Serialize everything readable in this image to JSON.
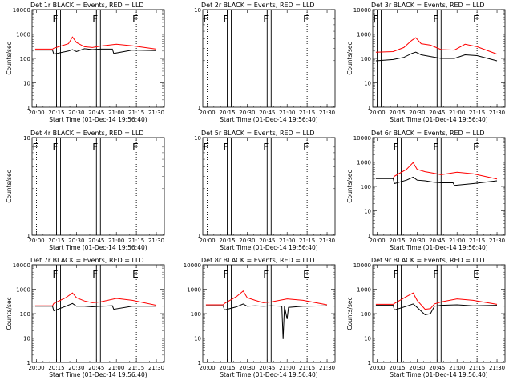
{
  "chart_data": [
    {
      "type": "line",
      "title": "Det 1r BLACK = Events, RED = LLD",
      "xlabel": "Start Time (01-Dec-14 19:56:40)",
      "ylabel": "Counts/sec",
      "yscale": "log",
      "ylim": [
        1,
        10000
      ],
      "yticks": [
        "1",
        "10",
        "100",
        "1000",
        "10000"
      ],
      "xticks": [
        "20:00",
        "20:15",
        "20:30",
        "20:45",
        "21:00",
        "21:15",
        "21:30"
      ],
      "markers": [
        {
          "label": "F",
          "x": "20:15"
        },
        {
          "label": "F",
          "x": "20:45"
        },
        {
          "label": "E",
          "x": "21:15"
        }
      ],
      "series": [
        {
          "name": "RED = LLD",
          "color": "#ff0000",
          "x": [
            "19:59",
            "20:12",
            "20:13",
            "20:24",
            "20:27",
            "20:30",
            "20:36",
            "20:42",
            "20:48",
            "21:00",
            "21:12",
            "21:30"
          ],
          "y": [
            240,
            240,
            260,
            400,
            750,
            450,
            300,
            280,
            320,
            380,
            330,
            240
          ]
        },
        {
          "name": "BLACK = Events",
          "color": "#000000",
          "x": [
            "19:59",
            "20:12",
            "20:13",
            "20:24",
            "20:27",
            "20:30",
            "20:36",
            "20:42",
            "20:48",
            "20:57",
            "20:58",
            "21:12",
            "21:30"
          ],
          "y": [
            220,
            220,
            150,
            200,
            230,
            190,
            250,
            230,
            240,
            240,
            160,
            220,
            210
          ]
        }
      ]
    },
    {
      "type": "line",
      "title": "Det 2r BLACK = Events, RED = LLD",
      "xlabel": "Start Time (01-Dec-14 19:56:40)",
      "ylabel": "",
      "yscale": "log",
      "ylim": [
        1,
        10
      ],
      "yticks": [
        "1",
        "10"
      ],
      "xticks": [
        "20:00",
        "20:15",
        "20:30",
        "20:45",
        "21:00",
        "21:15",
        "21:30"
      ],
      "markers": [
        {
          "label": "E",
          "x": "20:00"
        },
        {
          "label": "F",
          "x": "20:15"
        },
        {
          "label": "F",
          "x": "20:45"
        },
        {
          "label": "E",
          "x": "21:15"
        }
      ],
      "series": []
    },
    {
      "type": "line",
      "title": "Det 3r BLACK = Events, RED = LLD",
      "xlabel": "Start Time (01-Dec-14 19:56:40)",
      "ylabel": "Counts/sec",
      "yscale": "log",
      "ylim": [
        1,
        10000
      ],
      "yticks": [
        "1",
        "10",
        "100",
        "1000",
        "10000"
      ],
      "xticks": [
        "20:00",
        "20:15",
        "20:30",
        "20:45",
        "21:00",
        "21:15",
        "21:30"
      ],
      "markers": [
        {
          "label": "F",
          "x": "20:00"
        },
        {
          "label": "F",
          "x": "20:45"
        },
        {
          "label": "E",
          "x": "21:15"
        }
      ],
      "series": [
        {
          "name": "RED = LLD",
          "color": "#ff0000",
          "x": [
            "19:59",
            "20:12",
            "20:20",
            "20:26",
            "20:29",
            "20:33",
            "20:40",
            "20:48",
            "20:58",
            "21:06",
            "21:15",
            "21:30"
          ],
          "y": [
            180,
            190,
            280,
            550,
            700,
            400,
            350,
            230,
            220,
            380,
            300,
            150
          ]
        },
        {
          "name": "BLACK = Events",
          "color": "#000000",
          "x": [
            "19:59",
            "20:12",
            "20:20",
            "20:26",
            "20:29",
            "20:33",
            "20:40",
            "20:48",
            "20:58",
            "21:06",
            "21:15",
            "21:30"
          ],
          "y": [
            80,
            90,
            110,
            160,
            180,
            140,
            120,
            100,
            100,
            140,
            130,
            80
          ]
        }
      ]
    },
    {
      "type": "line",
      "title": "Det 4r BLACK = Events, RED = LLD",
      "xlabel": "Start Time (01-Dec-14 19:56:40)",
      "ylabel": "Counts/sec",
      "yscale": "log",
      "ylim": [
        1,
        10
      ],
      "yticks": [
        "1",
        "10"
      ],
      "xticks": [
        "20:00",
        "20:15",
        "20:30",
        "20:45",
        "21:00",
        "21:15",
        "21:30"
      ],
      "markers": [
        {
          "label": "E",
          "x": "20:00"
        },
        {
          "label": "F",
          "x": "20:15"
        },
        {
          "label": "F",
          "x": "20:45"
        },
        {
          "label": "E",
          "x": "21:15"
        }
      ],
      "series": []
    },
    {
      "type": "line",
      "title": "Det 5r BLACK = Events, RED = LLD",
      "xlabel": "Start Time (01-Dec-14 19:56:40)",
      "ylabel": "",
      "yscale": "log",
      "ylim": [
        1,
        10
      ],
      "yticks": [
        "1",
        "10"
      ],
      "xticks": [
        "20:00",
        "20:15",
        "20:30",
        "20:45",
        "21:00",
        "21:15",
        "21:30"
      ],
      "markers": [
        {
          "label": "E",
          "x": "20:00"
        },
        {
          "label": "F",
          "x": "20:15"
        },
        {
          "label": "F",
          "x": "20:45"
        },
        {
          "label": "E",
          "x": "21:15"
        }
      ],
      "series": []
    },
    {
      "type": "line",
      "title": "Det 6r BLACK = Events, RED = LLD",
      "xlabel": "Start Time (01-Dec-14 19:56:40)",
      "ylabel": "Counts/sec",
      "yscale": "log",
      "ylim": [
        1,
        10000
      ],
      "yticks": [
        "1",
        "10",
        "100",
        "1000",
        "10000"
      ],
      "xticks": [
        "20:00",
        "20:15",
        "20:30",
        "20:45",
        "21:00",
        "21:15",
        "21:30"
      ],
      "markers": [
        {
          "label": "F",
          "x": "20:15"
        },
        {
          "label": "F",
          "x": "20:45"
        },
        {
          "label": "E",
          "x": "21:15"
        }
      ],
      "series": [
        {
          "name": "RED = LLD",
          "color": "#ff0000",
          "x": [
            "19:59",
            "20:12",
            "20:13",
            "20:22",
            "20:27",
            "20:30",
            "20:36",
            "20:42",
            "20:48",
            "21:00",
            "21:12",
            "21:30"
          ],
          "y": [
            220,
            220,
            260,
            500,
            950,
            500,
            400,
            350,
            300,
            380,
            330,
            200
          ]
        },
        {
          "name": "BLACK = Events",
          "color": "#000000",
          "x": [
            "19:59",
            "20:12",
            "20:13",
            "20:22",
            "20:27",
            "20:30",
            "20:36",
            "20:42",
            "20:48",
            "20:57",
            "20:58",
            "21:12",
            "21:30"
          ],
          "y": [
            210,
            210,
            130,
            180,
            240,
            180,
            170,
            150,
            140,
            140,
            110,
            130,
            170
          ]
        }
      ]
    },
    {
      "type": "line",
      "title": "Det 7r BLACK = Events, RED = LLD",
      "xlabel": "Start Time (01-Dec-14 19:56:40)",
      "ylabel": "Counts/sec",
      "yscale": "log",
      "ylim": [
        1,
        10000
      ],
      "yticks": [
        "1",
        "10",
        "100",
        "1000",
        "10000"
      ],
      "xticks": [
        "20:00",
        "20:15",
        "20:30",
        "20:45",
        "21:00",
        "21:15",
        "21:30"
      ],
      "markers": [
        {
          "label": "F",
          "x": "20:15"
        },
        {
          "label": "F",
          "x": "20:45"
        },
        {
          "label": "E",
          "x": "21:15"
        }
      ],
      "series": [
        {
          "name": "RED = LLD",
          "color": "#ff0000",
          "x": [
            "19:59",
            "20:12",
            "20:13",
            "20:22",
            "20:27",
            "20:30",
            "20:36",
            "20:42",
            "20:48",
            "21:00",
            "21:12",
            "21:30"
          ],
          "y": [
            210,
            210,
            260,
            450,
            700,
            450,
            330,
            280,
            300,
            420,
            350,
            220
          ]
        },
        {
          "name": "BLACK = Events",
          "color": "#000000",
          "x": [
            "19:59",
            "20:12",
            "20:13",
            "20:22",
            "20:27",
            "20:30",
            "20:36",
            "20:42",
            "20:48",
            "20:57",
            "20:58",
            "21:12",
            "21:30"
          ],
          "y": [
            200,
            200,
            130,
            200,
            260,
            200,
            200,
            190,
            200,
            210,
            150,
            200,
            200
          ]
        }
      ]
    },
    {
      "type": "line",
      "title": "Det 8r BLACK = Events, RED = LLD",
      "xlabel": "Start Time (01-Dec-14 19:56:40)",
      "ylabel": "",
      "yscale": "log",
      "ylim": [
        1,
        10000
      ],
      "yticks": [
        "1",
        "10",
        "100",
        "1000",
        "10000"
      ],
      "xticks": [
        "20:00",
        "20:15",
        "20:30",
        "20:45",
        "21:00",
        "21:15",
        "21:30"
      ],
      "markers": [
        {
          "label": "F",
          "x": "20:15"
        },
        {
          "label": "F",
          "x": "20:45"
        },
        {
          "label": "E",
          "x": "21:15"
        }
      ],
      "series": [
        {
          "name": "RED = LLD",
          "color": "#ff0000",
          "x": [
            "19:59",
            "20:12",
            "20:13",
            "20:22",
            "20:27",
            "20:30",
            "20:36",
            "20:42",
            "20:48",
            "21:00",
            "21:12",
            "21:30"
          ],
          "y": [
            230,
            230,
            260,
            500,
            850,
            450,
            350,
            280,
            300,
            400,
            350,
            230
          ]
        },
        {
          "name": "BLACK = Events",
          "color": "#000000",
          "x": [
            "19:59",
            "20:12",
            "20:13",
            "20:22",
            "20:27",
            "20:30",
            "20:36",
            "20:42",
            "20:48",
            "20:56",
            "20:57",
            "20:58",
            "21:00",
            "21:01",
            "21:12",
            "21:30"
          ],
          "y": [
            210,
            210,
            140,
            190,
            250,
            200,
            210,
            200,
            210,
            200,
            9,
            200,
            60,
            180,
            200,
            210
          ]
        }
      ]
    },
    {
      "type": "line",
      "title": "Det 9r BLACK = Events, RED = LLD",
      "xlabel": "Start Time (01-Dec-14 19:56:40)",
      "ylabel": "Counts/sec",
      "yscale": "log",
      "ylim": [
        1,
        10000
      ],
      "yticks": [
        "1",
        "10",
        "100",
        "1000",
        "10000"
      ],
      "xticks": [
        "20:00",
        "20:15",
        "20:30",
        "20:45",
        "21:00",
        "21:15",
        "21:30"
      ],
      "markers": [
        {
          "label": "F",
          "x": "20:15"
        },
        {
          "label": "F",
          "x": "20:45"
        },
        {
          "label": "E",
          "x": "21:15"
        }
      ],
      "series": [
        {
          "name": "RED = LLD",
          "color": "#ff0000",
          "x": [
            "19:59",
            "20:12",
            "20:13",
            "20:22",
            "20:27",
            "20:30",
            "20:36",
            "20:40",
            "20:43",
            "20:48",
            "21:00",
            "21:12",
            "21:30"
          ],
          "y": [
            240,
            240,
            260,
            500,
            700,
            350,
            150,
            160,
            250,
            300,
            400,
            350,
            240
          ]
        },
        {
          "name": "BLACK = Events",
          "color": "#000000",
          "x": [
            "19:59",
            "20:12",
            "20:13",
            "20:22",
            "20:27",
            "20:30",
            "20:36",
            "20:40",
            "20:43",
            "20:48",
            "21:00",
            "21:12",
            "21:30"
          ],
          "y": [
            220,
            220,
            140,
            200,
            250,
            180,
            90,
            100,
            200,
            220,
            230,
            210,
            220
          ]
        }
      ]
    }
  ]
}
